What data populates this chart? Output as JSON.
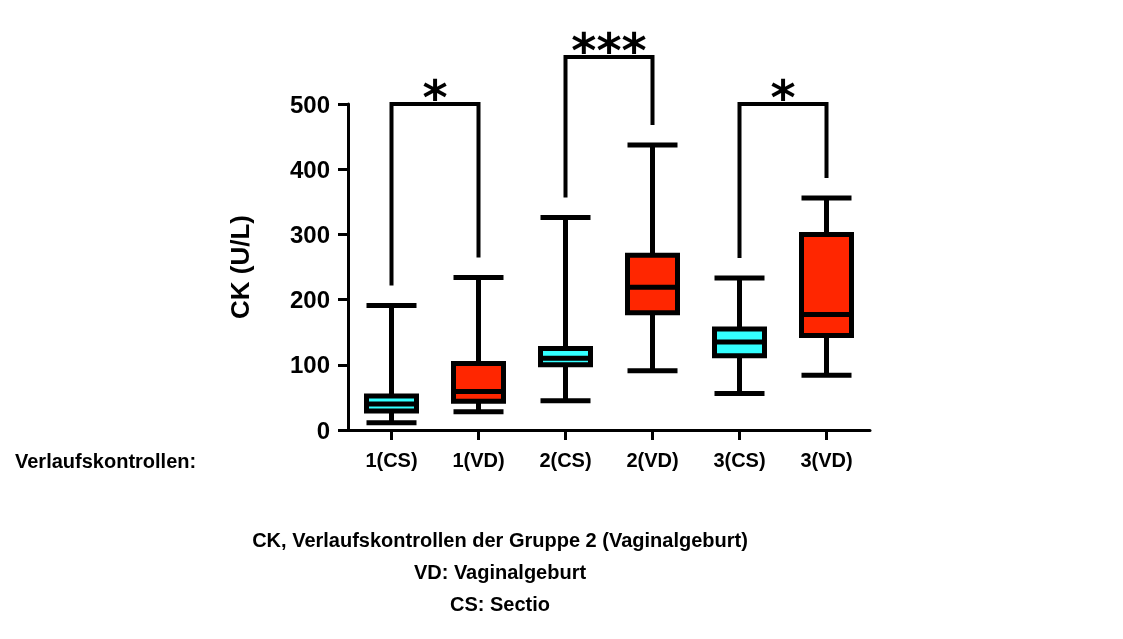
{
  "chart_data": {
    "type": "box",
    "title": "CK, Verlaufskontrollen der Gruppe 2 (Vaginalgeburt)",
    "xlabel": "Verlaufskontrollen:",
    "ylabel": "CK (U/L)",
    "categories": [
      "1(CS)",
      "1(VD)",
      "2(CS)",
      "2(VD)",
      "3(CS)",
      "3(VD)"
    ],
    "boxes": [
      {
        "low": 11,
        "q1": 29,
        "median": 40,
        "q3": 52,
        "high": 191
      },
      {
        "low": 28,
        "q1": 44,
        "median": 59,
        "q3": 102,
        "high": 234
      },
      {
        "low": 45,
        "q1": 100,
        "median": 110,
        "q3": 125,
        "high": 326
      },
      {
        "low": 91,
        "q1": 180,
        "median": 219,
        "q3": 268,
        "high": 437
      },
      {
        "low": 56,
        "q1": 114,
        "median": 135,
        "q3": 155,
        "high": 233
      },
      {
        "low": 84,
        "q1": 145,
        "median": 177,
        "q3": 300,
        "high": 356
      }
    ],
    "colors": [
      "#33ffff",
      "#ff2600",
      "#33ffff",
      "#ff2600",
      "#33ffff",
      "#ff2600"
    ],
    "ylim": [
      0,
      500
    ],
    "yticks": [
      0,
      100,
      200,
      300,
      400,
      500
    ],
    "grid": false,
    "annotations": [
      "*",
      "***",
      "*",
      "VD: Vaginalgeburt",
      "CS: Sectio"
    ]
  }
}
